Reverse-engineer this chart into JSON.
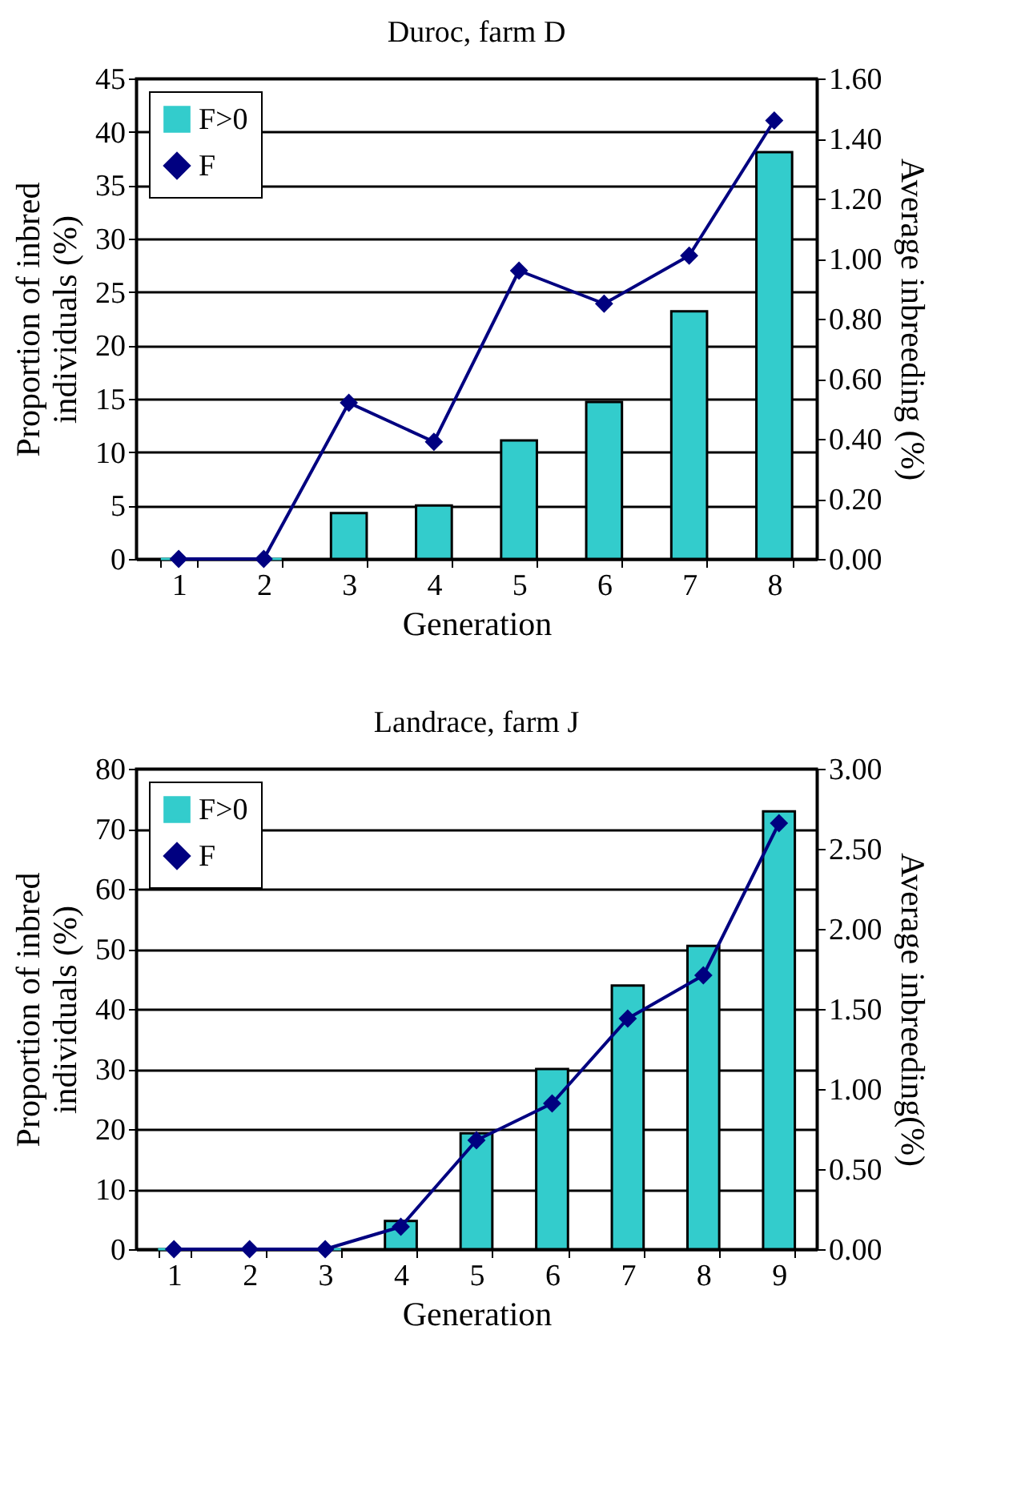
{
  "chart_data": [
    {
      "type": "bar",
      "title": "Duroc, farm D",
      "xlabel": "Generation",
      "ylabel": "Proportion of inbred\nindividuals (%)",
      "y2label": "Average inbreeding (%)",
      "categories": [
        "1",
        "2",
        "3",
        "4",
        "5",
        "6",
        "7",
        "8"
      ],
      "series": [
        {
          "name": "F>0",
          "color": "#33cccc",
          "values": [
            0,
            0,
            4.3,
            5.0,
            11.1,
            14.7,
            23.2,
            38.1
          ]
        },
        {
          "name": "F",
          "type": "line",
          "axis": "y2",
          "color": "#000080",
          "values": [
            0,
            0,
            0.52,
            0.39,
            0.96,
            0.85,
            1.01,
            1.46
          ]
        }
      ],
      "ylim": [
        0,
        45
      ],
      "yticks": [
        0,
        5,
        10,
        15,
        20,
        25,
        30,
        35,
        40,
        45
      ],
      "y2lim": [
        0,
        1.6
      ],
      "y2ticks": [
        {
          "value": 0,
          "label": "0.00"
        },
        {
          "value": 0.2,
          "label": "0.20"
        },
        {
          "value": 0.4,
          "label": "0.40"
        },
        {
          "value": 0.6,
          "label": "0.60"
        },
        {
          "value": 0.8,
          "label": "0.80"
        },
        {
          "value": 1,
          "label": "1.00"
        },
        {
          "value": 1.2,
          "label": "1.20"
        },
        {
          "value": 1.4,
          "label": "1.40"
        },
        {
          "value": 1.6,
          "label": "1.60"
        }
      ],
      "grid": "y",
      "legend": "top left",
      "marker": "diamond",
      "line_style": "solid"
    },
    {
      "type": "bar",
      "title": "Landrace, farm J",
      "xlabel": "Generation",
      "ylabel": "Proportion of inbred\nindividuals (%)",
      "y2label": "Average inbreeding(%)",
      "categories": [
        "1",
        "2",
        "3",
        "4",
        "5",
        "6",
        "7",
        "8",
        "9"
      ],
      "series": [
        {
          "name": "F>0",
          "color": "#33cccc",
          "values": [
            0,
            0,
            0,
            4.7,
            19.3,
            30.0,
            43.9,
            50.5,
            72.9
          ]
        },
        {
          "name": "F",
          "type": "line",
          "axis": "y2",
          "color": "#000080",
          "values": [
            0,
            0,
            0,
            0.14,
            0.68,
            0.91,
            1.44,
            1.71,
            2.66
          ]
        }
      ],
      "ylim": [
        0,
        80
      ],
      "yticks": [
        0,
        10,
        20,
        30,
        40,
        50,
        60,
        70,
        80
      ],
      "y2lim": [
        0,
        3
      ],
      "y2ticks": [
        {
          "value": 0,
          "label": "0.00"
        },
        {
          "value": 0.5,
          "label": "0.50"
        },
        {
          "value": 1,
          "label": "1.00"
        },
        {
          "value": 1.5,
          "label": "1.50"
        },
        {
          "value": 2,
          "label": "2.00"
        },
        {
          "value": 2.5,
          "label": "2.50"
        },
        {
          "value": 3,
          "label": "3.00"
        }
      ],
      "grid": "y",
      "legend": "top left",
      "marker": "diamond",
      "line_style": "solid"
    }
  ]
}
